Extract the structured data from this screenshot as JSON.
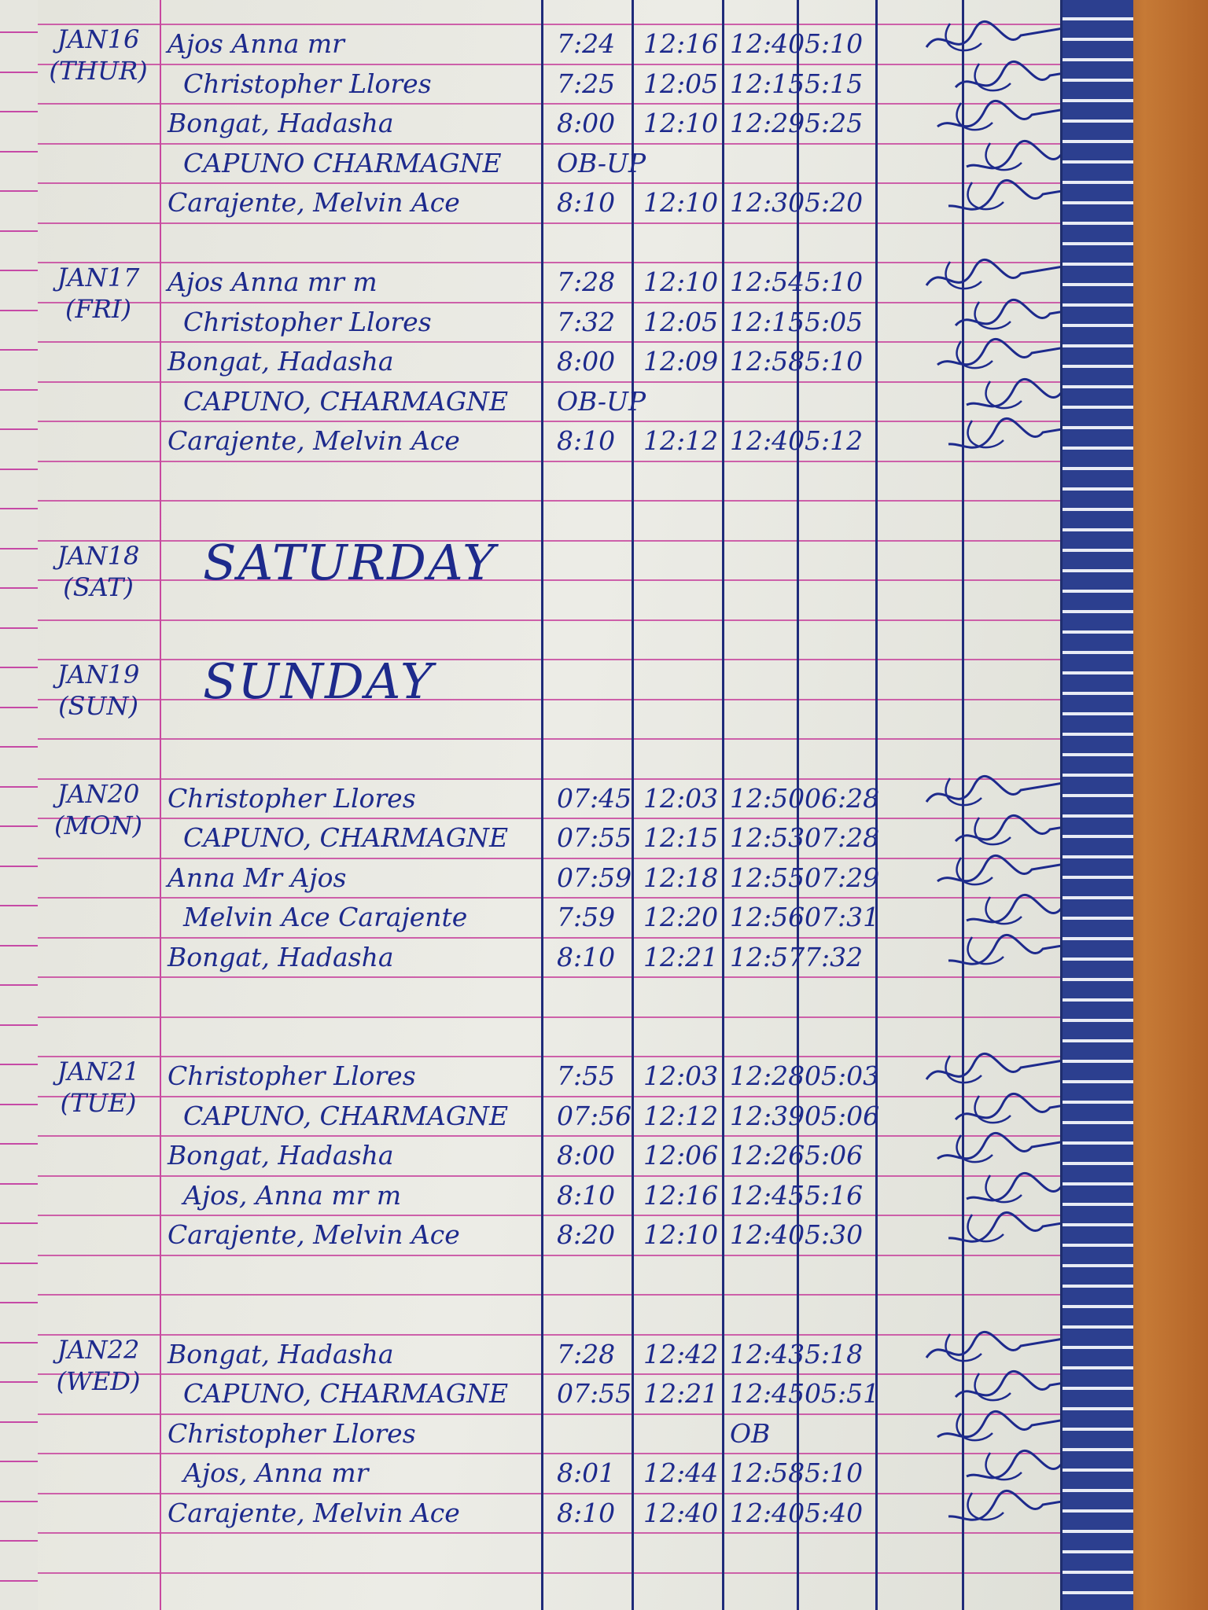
{
  "logbook": {
    "groups": [
      {
        "date": "JAN16",
        "day": "(THUR)",
        "rows": [
          {
            "name": "Ajos Anna mr",
            "time_in": "7:24",
            "lunch_out": "12:16",
            "lunch_in": "12:40",
            "time_out": "5:10"
          },
          {
            "name": "Christopher Llores",
            "time_in": "7:25",
            "lunch_out": "12:05",
            "lunch_in": "12:15",
            "time_out": "5:15"
          },
          {
            "name": "Bongat, Hadasha",
            "time_in": "8:00",
            "lunch_out": "12:10",
            "lunch_in": "12:29",
            "time_out": "5:25"
          },
          {
            "name": "CAPUNO CHARMAGNE",
            "time_in": "OB-UP",
            "lunch_out": "",
            "lunch_in": "",
            "time_out": ""
          },
          {
            "name": "Carajente, Melvin Ace",
            "time_in": "8:10",
            "lunch_out": "12:10",
            "lunch_in": "12:30",
            "time_out": "5:20"
          }
        ]
      },
      {
        "date": "JAN17",
        "day": "(FRI)",
        "rows": [
          {
            "name": "Ajos Anna mr m",
            "time_in": "7:28",
            "lunch_out": "12:10",
            "lunch_in": "12:54",
            "time_out": "5:10"
          },
          {
            "name": "Christopher Llores",
            "time_in": "7:32",
            "lunch_out": "12:05",
            "lunch_in": "12:15",
            "time_out": "5:05"
          },
          {
            "name": "Bongat, Hadasha",
            "time_in": "8:00",
            "lunch_out": "12:09",
            "lunch_in": "12:58",
            "time_out": "5:10"
          },
          {
            "name": "CAPUNO, CHARMAGNE",
            "time_in": "OB-UP",
            "lunch_out": "",
            "lunch_in": "",
            "time_out": ""
          },
          {
            "name": "Carajente, Melvin Ace",
            "time_in": "8:10",
            "lunch_out": "12:12",
            "lunch_in": "12:40",
            "time_out": "5:12"
          }
        ]
      },
      {
        "date": "JAN18",
        "day": "(SAT)",
        "note": "SATURDAY",
        "rows": []
      },
      {
        "date": "JAN19",
        "day": "(SUN)",
        "note": "SUNDAY",
        "rows": []
      },
      {
        "date": "JAN20",
        "day": "(MON)",
        "rows": [
          {
            "name": "Christopher Llores",
            "time_in": "07:45",
            "lunch_out": "12:03",
            "lunch_in": "12:50",
            "time_out": "06:28"
          },
          {
            "name": "CAPUNO, CHARMAGNE",
            "time_in": "07:55",
            "lunch_out": "12:15",
            "lunch_in": "12:53",
            "time_out": "07:28"
          },
          {
            "name": "Anna Mr Ajos",
            "time_in": "07:59",
            "lunch_out": "12:18",
            "lunch_in": "12:55",
            "time_out": "07:29"
          },
          {
            "name": "Melvin Ace Carajente",
            "time_in": "7:59",
            "lunch_out": "12:20",
            "lunch_in": "12:56",
            "time_out": "07:31"
          },
          {
            "name": "Bongat, Hadasha",
            "time_in": "8:10",
            "lunch_out": "12:21",
            "lunch_in": "12:57",
            "time_out": "7:32"
          }
        ]
      },
      {
        "date": "JAN21",
        "day": "(TUE)",
        "rows": [
          {
            "name": "Christopher Llores",
            "time_in": "7:55",
            "lunch_out": "12:03",
            "lunch_in": "12:28",
            "time_out": "05:03"
          },
          {
            "name": "CAPUNO, CHARMAGNE",
            "time_in": "07:56",
            "lunch_out": "12:12",
            "lunch_in": "12:39",
            "time_out": "05:06"
          },
          {
            "name": "Bongat, Hadasha",
            "time_in": "8:00",
            "lunch_out": "12:06",
            "lunch_in": "12:26",
            "time_out": "5:06"
          },
          {
            "name": "Ajos, Anna mr m",
            "time_in": "8:10",
            "lunch_out": "12:16",
            "lunch_in": "12:45",
            "time_out": "5:16"
          },
          {
            "name": "Carajente, Melvin Ace",
            "time_in": "8:20",
            "lunch_out": "12:10",
            "lunch_in": "12:40",
            "time_out": "5:30"
          }
        ]
      },
      {
        "date": "JAN22",
        "day": "(WED)",
        "rows": [
          {
            "name": "Bongat, Hadasha",
            "time_in": "7:28",
            "lunch_out": "12:42",
            "lunch_in": "12:43",
            "time_out": "5:18"
          },
          {
            "name": "CAPUNO, CHARMAGNE",
            "time_in": "07:55",
            "lunch_out": "12:21",
            "lunch_in": "12:45",
            "time_out": "05:51"
          },
          {
            "name": "Christopher Llores",
            "time_in": "",
            "lunch_out": "",
            "lunch_in": "OB",
            "time_out": ""
          },
          {
            "name": "Ajos, Anna mr",
            "time_in": "8:01",
            "lunch_out": "12:44",
            "lunch_in": "12:58",
            "time_out": "5:10"
          },
          {
            "name": "Carajente, Melvin Ace",
            "time_in": "8:10",
            "lunch_out": "12:40",
            "lunch_in": "12:40",
            "time_out": "5:40"
          }
        ]
      }
    ]
  },
  "colors": {
    "ink": "#1d2a8c",
    "rule": "#c8489f",
    "binding": "#2c3f8f"
  }
}
